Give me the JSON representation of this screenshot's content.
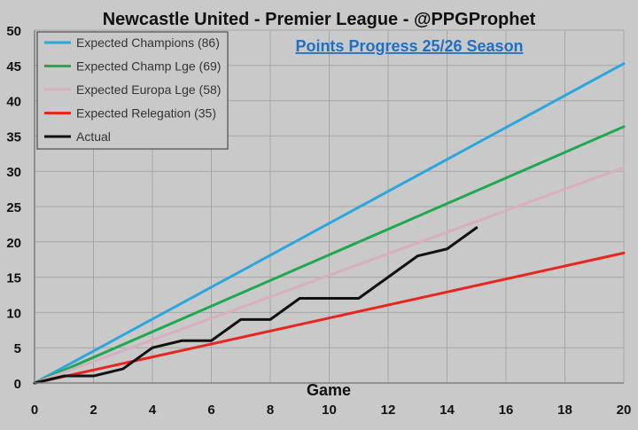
{
  "chart_data": {
    "type": "line",
    "title": "Newcastle United - Premier League - @PPGProphet",
    "subtitle": "Points Progress 25/26 Season",
    "xlabel": "Game",
    "ylabel": "",
    "xlim": [
      0,
      20
    ],
    "ylim": [
      0,
      50
    ],
    "x_ticks": [
      0,
      2,
      4,
      6,
      8,
      10,
      12,
      14,
      16,
      18,
      20
    ],
    "y_ticks": [
      0,
      5,
      10,
      15,
      20,
      25,
      30,
      35,
      40,
      45,
      50
    ],
    "grid": true,
    "legend_position": "top-left",
    "series": [
      {
        "name": "Expected Champions (86)",
        "color": "#2aa7dc",
        "x": [
          0,
          20
        ],
        "y": [
          0,
          45.26
        ]
      },
      {
        "name": "Expected Champ Lge (69)",
        "color": "#1fa84f",
        "x": [
          0,
          20
        ],
        "y": [
          0,
          36.32
        ]
      },
      {
        "name": "Expected Europa Lge (58)",
        "color": "#d9aebf",
        "x": [
          0,
          20
        ],
        "y": [
          0,
          30.53
        ]
      },
      {
        "name": "Expected Relegation (35)",
        "color": "#e8251f",
        "x": [
          0,
          20
        ],
        "y": [
          0,
          18.42
        ]
      },
      {
        "name": "Actual",
        "color": "#111111",
        "x": [
          0,
          1,
          2,
          3,
          4,
          5,
          6,
          7,
          8,
          9,
          10,
          11,
          12,
          13,
          14,
          15
        ],
        "y": [
          0,
          1,
          1,
          2,
          5,
          6,
          6,
          9,
          9,
          12,
          12,
          12,
          15,
          18,
          19,
          22
        ]
      }
    ]
  }
}
